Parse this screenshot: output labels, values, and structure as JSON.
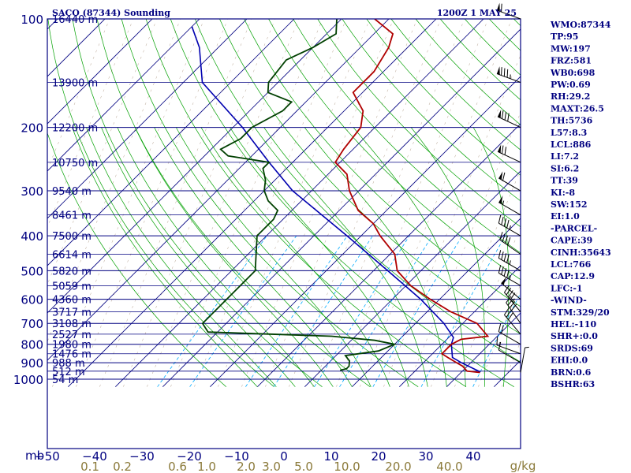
{
  "header": {
    "title": "SACO (87344) Sounding",
    "time": "1200Z  1 MAY 25"
  },
  "axes": {
    "p_unit": "mb",
    "mix_unit": "g/kg"
  },
  "indices": [
    "WMO:87344",
    "TP:95",
    "MW:197",
    "FRZ:581",
    "WB0:698",
    "PW:0.69",
    "RH:29.2",
    "MAXT:26.5",
    "TH:5736",
    "L57:8.3",
    "LCL:886",
    "LI:7.2",
    "SI:6.2",
    "TT:39",
    "KI:-8",
    "SW:152",
    "EI:1.0",
    "-PARCEL-",
    "CAPE:39",
    "CINH:35643",
    "LCL:766",
    "CAP:12.9",
    "LFC:-1",
    "-WIND-",
    "STM:329/20",
    "HEL:-110",
    "SHR+:0.0",
    "SRDS:69",
    "EHI:0.0",
    "BRN:0.6",
    "BSHR:63"
  ],
  "colors": {
    "frame": "#000080",
    "isobar": "#000080",
    "isotherm": "#000080",
    "dry_adiabat": "#00a000",
    "moist_adiabat": "#00a000",
    "mixing_ratio": "#00aaff",
    "temperature": "#b00000",
    "dewpoint": "#004000",
    "parcel": "#0000b0",
    "height_label": "#000080",
    "mixing_label": "#8b7a3a",
    "wind": "#000000"
  },
  "chart_data": {
    "type": "skew-t",
    "ylabel": "mb",
    "xlabel": "",
    "pressure_ticks": [
      100,
      200,
      300,
      400,
      500,
      600,
      700,
      800,
      900,
      1000
    ],
    "temp_ticks": [
      -50,
      -40,
      -30,
      -20,
      -10,
      0,
      10,
      20,
      30,
      40
    ],
    "temp_tick_labels": [
      "−50",
      "−40",
      "−30",
      "−20",
      "−10",
      "0",
      "10",
      "20",
      "30",
      "40"
    ],
    "mixing_ratio_labels": [
      "0.1",
      "0.2",
      "0.6",
      "1.0",
      "2.0",
      "3.0",
      "5.0",
      "10.0",
      "20.0",
      "40.0"
    ],
    "height_labels": [
      {
        "label": "16440 m",
        "p": 100
      },
      {
        "label": "13900 m",
        "p": 150
      },
      {
        "label": "12200 m",
        "p": 200
      },
      {
        "label": "10750 m",
        "p": 250
      },
      {
        "label": "9540 m",
        "p": 300
      },
      {
        "label": "8461 m",
        "p": 350
      },
      {
        "label": "7500 m",
        "p": 400
      },
      {
        "label": "6614 m",
        "p": 450
      },
      {
        "label": "5820 m",
        "p": 500
      },
      {
        "label": "5059 m",
        "p": 550
      },
      {
        "label": "4360 m",
        "p": 600
      },
      {
        "label": "3717 m",
        "p": 650
      },
      {
        "label": "3108 m",
        "p": 700
      },
      {
        "label": "2527 m",
        "p": 750
      },
      {
        "label": "1980 m",
        "p": 800
      },
      {
        "label": "1476 m",
        "p": 850
      },
      {
        "label": "988 m",
        "p": 900
      },
      {
        "label": "512 m",
        "p": 950
      },
      {
        "label": "54 m",
        "p": 1000
      }
    ],
    "temperature": [
      {
        "p": 958,
        "t": 24
      },
      {
        "p": 950,
        "t": 21
      },
      {
        "p": 920,
        "t": 19
      },
      {
        "p": 900,
        "t": 17
      },
      {
        "p": 870,
        "t": 14
      },
      {
        "p": 850,
        "t": 12
      },
      {
        "p": 800,
        "t": 12
      },
      {
        "p": 775,
        "t": 13
      },
      {
        "p": 760,
        "t": 18
      },
      {
        "p": 700,
        "t": 13
      },
      {
        "p": 650,
        "t": 5
      },
      {
        "p": 600,
        "t": -2
      },
      {
        "p": 550,
        "t": -9
      },
      {
        "p": 500,
        "t": -15
      },
      {
        "p": 450,
        "t": -19
      },
      {
        "p": 400,
        "t": -26
      },
      {
        "p": 370,
        "t": -30
      },
      {
        "p": 340,
        "t": -36
      },
      {
        "p": 300,
        "t": -42
      },
      {
        "p": 270,
        "t": -46
      },
      {
        "p": 250,
        "t": -51
      },
      {
        "p": 230,
        "t": -52
      },
      {
        "p": 200,
        "t": -53
      },
      {
        "p": 180,
        "t": -56
      },
      {
        "p": 160,
        "t": -62
      },
      {
        "p": 140,
        "t": -62
      },
      {
        "p": 120,
        "t": -64
      },
      {
        "p": 110,
        "t": -66
      },
      {
        "p": 100,
        "t": -73
      }
    ],
    "dewpoint": [
      {
        "p": 945,
        "t": -6
      },
      {
        "p": 935,
        "t": -5
      },
      {
        "p": 920,
        "t": -5
      },
      {
        "p": 890,
        "t": -6
      },
      {
        "p": 860,
        "t": -8
      },
      {
        "p": 835,
        "t": -2
      },
      {
        "p": 800,
        "t": 0
      },
      {
        "p": 780,
        "t": -5
      },
      {
        "p": 760,
        "t": -15
      },
      {
        "p": 740,
        "t": -42
      },
      {
        "p": 700,
        "t": -45
      },
      {
        "p": 600,
        "t": -45
      },
      {
        "p": 500,
        "t": -45
      },
      {
        "p": 400,
        "t": -52
      },
      {
        "p": 360,
        "t": -52
      },
      {
        "p": 340,
        "t": -53
      },
      {
        "p": 320,
        "t": -57
      },
      {
        "p": 300,
        "t": -60
      },
      {
        "p": 280,
        "t": -62
      },
      {
        "p": 260,
        "t": -65
      },
      {
        "p": 250,
        "t": -65
      },
      {
        "p": 240,
        "t": -75
      },
      {
        "p": 230,
        "t": -78
      },
      {
        "p": 215,
        "t": -76
      },
      {
        "p": 200,
        "t": -76
      },
      {
        "p": 180,
        "t": -73
      },
      {
        "p": 170,
        "t": -73
      },
      {
        "p": 160,
        "t": -80
      },
      {
        "p": 150,
        "t": -82
      },
      {
        "p": 130,
        "t": -83
      },
      {
        "p": 120,
        "t": -80
      },
      {
        "p": 110,
        "t": -78
      },
      {
        "p": 100,
        "t": -81
      }
    ],
    "parcel": [
      {
        "p": 955,
        "t": 24
      },
      {
        "p": 900,
        "t": 18
      },
      {
        "p": 870,
        "t": 15
      },
      {
        "p": 800,
        "t": 12
      },
      {
        "p": 766,
        "t": 11
      },
      {
        "p": 700,
        "t": 6
      },
      {
        "p": 600,
        "t": -4
      },
      {
        "p": 500,
        "t": -17
      },
      {
        "p": 400,
        "t": -33
      },
      {
        "p": 300,
        "t": -54
      },
      {
        "p": 250,
        "t": -65
      },
      {
        "p": 200,
        "t": -78
      },
      {
        "p": 150,
        "t": -96
      },
      {
        "p": 120,
        "t": -104
      },
      {
        "p": 105,
        "t": -110
      }
    ],
    "wind_barbs": [
      {
        "p": 958,
        "dir": 10,
        "spd": 5
      },
      {
        "p": 900,
        "dir": 300,
        "spd": 10
      },
      {
        "p": 850,
        "dir": 290,
        "spd": 15
      },
      {
        "p": 800,
        "dir": 300,
        "spd": 20
      },
      {
        "p": 750,
        "dir": 320,
        "spd": 30
      },
      {
        "p": 700,
        "dir": 325,
        "spd": 40
      },
      {
        "p": 650,
        "dir": 320,
        "spd": 45
      },
      {
        "p": 600,
        "dir": 310,
        "spd": 50
      },
      {
        "p": 550,
        "dir": 300,
        "spd": 45
      },
      {
        "p": 500,
        "dir": 300,
        "spd": 45
      },
      {
        "p": 450,
        "dir": 305,
        "spd": 40
      },
      {
        "p": 400,
        "dir": 300,
        "spd": 45
      },
      {
        "p": 350,
        "dir": 300,
        "spd": 55
      },
      {
        "p": 300,
        "dir": 300,
        "spd": 60
      },
      {
        "p": 250,
        "dir": 295,
        "spd": 70
      },
      {
        "p": 200,
        "dir": 295,
        "spd": 80
      },
      {
        "p": 150,
        "dir": 290,
        "spd": 85
      },
      {
        "p": 100,
        "dir": 290,
        "spd": 60
      }
    ]
  }
}
